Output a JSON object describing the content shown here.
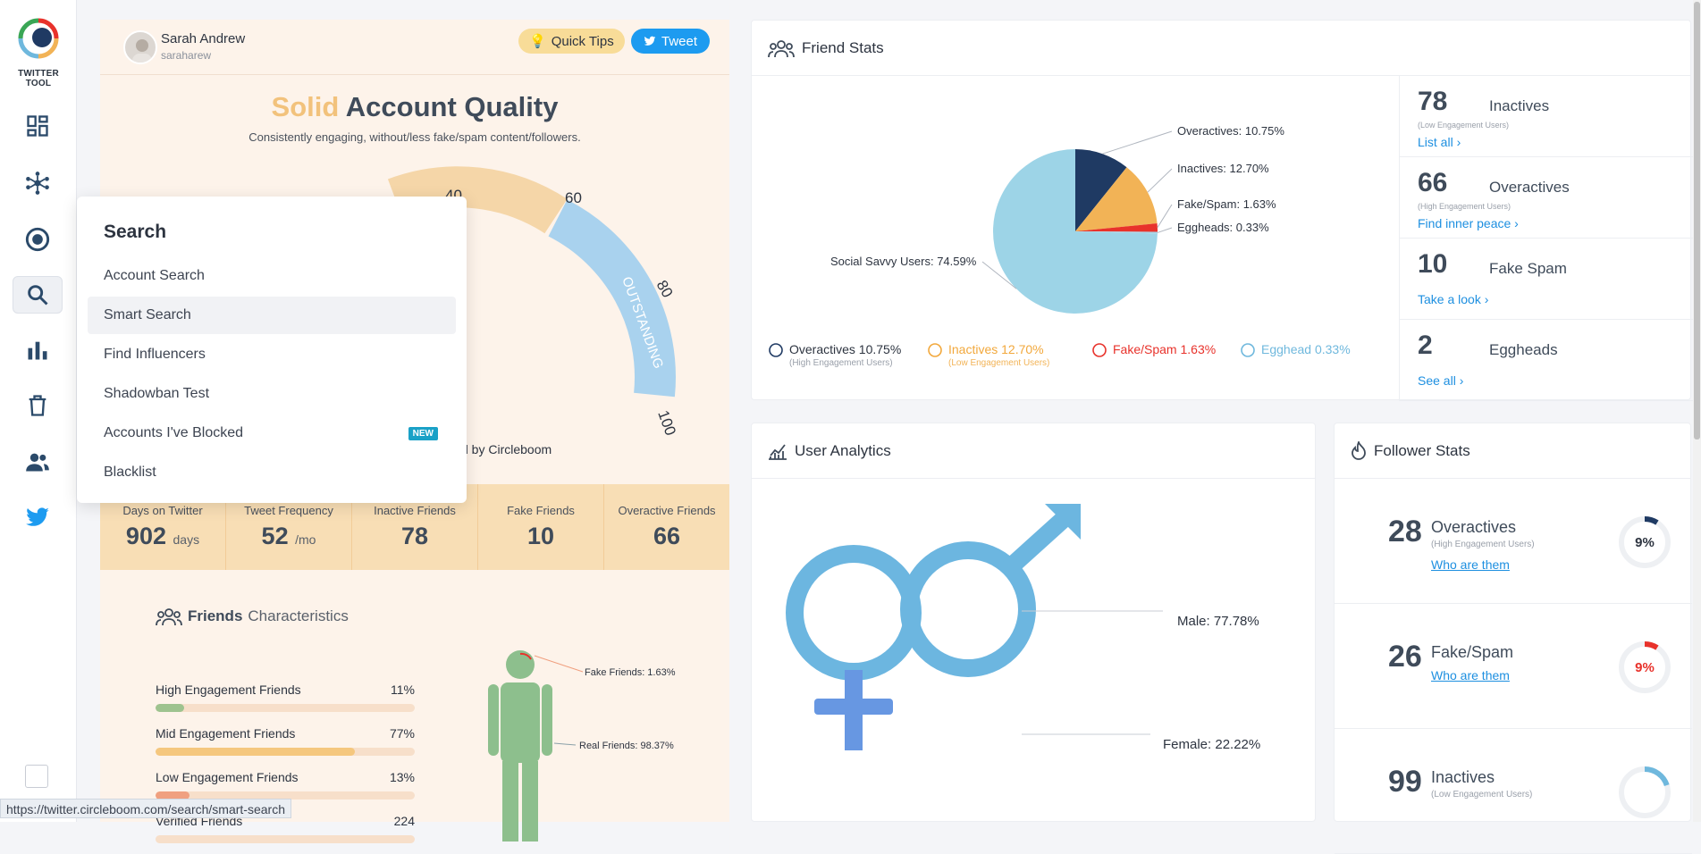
{
  "app": {
    "name": "TWITTER TOOL",
    "status_url": "https://twitter.circleboom.com/search/smart-search"
  },
  "sidebar": {
    "icons": [
      "dashboard-icon",
      "circle-network-icon",
      "target-icon",
      "search-icon",
      "bar-chart-icon",
      "trash-icon",
      "users-icon",
      "twitter-bird-icon"
    ],
    "active": "search-icon"
  },
  "profile": {
    "name": "Sarah Andrew",
    "handle": "saraharew"
  },
  "buttons": {
    "quick_tips": "Quick Tips",
    "tweet": "Tweet"
  },
  "quality": {
    "title_highlight": "Solid",
    "title_rest": " Account Quality",
    "subtitle": "Consistently engaging, without/less fake/spam content/followers.",
    "gauge_ticks": [
      "40",
      "60",
      "80",
      "100"
    ],
    "gauge_band": "OUTSTANDING",
    "powered": "d by Circleboom"
  },
  "search_menu": {
    "title": "Search",
    "items": [
      "Account Search",
      "Smart Search",
      "Find Influencers",
      "Shadowban Test",
      "Accounts I've Blocked",
      "Blacklist"
    ],
    "selected": "Smart Search",
    "new_badge": "NEW"
  },
  "stats": [
    {
      "label": "Days on Twitter",
      "value": "902",
      "unit": "days"
    },
    {
      "label": "Tweet Frequency",
      "value": "52",
      "unit": "/mo"
    },
    {
      "label": "Inactive Friends",
      "value": "78",
      "unit": ""
    },
    {
      "label": "Fake Friends",
      "value": "10",
      "unit": ""
    },
    {
      "label": "Overactive Friends",
      "value": "66",
      "unit": ""
    }
  ],
  "friends_characteristics": {
    "title_bold": "Friends",
    "title_light": "Characteristics",
    "bars": [
      {
        "label": "High Engagement Friends",
        "pct": "11%",
        "frac": 0.11,
        "color": "#9ec38f"
      },
      {
        "label": "Mid Engagement Friends",
        "pct": "77%",
        "frac": 0.77,
        "color": "#f5c77e"
      },
      {
        "label": "Low Engagement Friends",
        "pct": "13%",
        "frac": 0.13,
        "color": "#f0a080"
      },
      {
        "label": "Verified Friends",
        "pct": "224",
        "frac": 0.0,
        "color": "#f7dfca"
      }
    ],
    "person_labels": {
      "fake": "Fake Friends: 1.63%",
      "real": "Real Friends: 98.37%"
    }
  },
  "friend_stats": {
    "title": "Friend Stats",
    "chart_data": {
      "type": "pie",
      "slices": [
        {
          "label": "Overactives: 10.75%",
          "value": 10.75,
          "color": "#1f3a63"
        },
        {
          "label": "Inactives: 12.70%",
          "value": 12.7,
          "color": "#f2b356"
        },
        {
          "label": "Fake/Spam: 1.63%",
          "value": 1.63,
          "color": "#e8322b"
        },
        {
          "label": "Eggheads: 0.33%",
          "value": 0.33,
          "color": "#a8d3e6"
        },
        {
          "label": "Social Savvy Users: 74.59%",
          "value": 74.59,
          "color": "#9dd4e7"
        }
      ]
    },
    "legend": [
      {
        "text": "Overactives 10.75%",
        "sub": "(High Engagement Users)",
        "color": "#1f3a63"
      },
      {
        "text": "Inactives 12.70%",
        "sub": "(Low Engagement Users)",
        "color": "#f2a83c"
      },
      {
        "text": "Fake/Spam 1.63%",
        "sub": "",
        "color": "#e8322b"
      },
      {
        "text": "Egghead 0.33%",
        "sub": "",
        "color": "#6fb8dd"
      }
    ],
    "side": [
      {
        "num": "78",
        "name": "Inactives",
        "sub": "(Low Engagement Users)",
        "link": "List all ›"
      },
      {
        "num": "66",
        "name": "Overactives",
        "sub": "(High Engagement Users)",
        "link": "Find inner peace ›"
      },
      {
        "num": "10",
        "name": "Fake Spam",
        "sub": "",
        "link": "Take a look ›"
      },
      {
        "num": "2",
        "name": "Eggheads",
        "sub": "",
        "link": "See all ›"
      }
    ]
  },
  "user_analytics": {
    "title": "User Analytics",
    "male": "Male: 77.78%",
    "female": "Female: 22.22%",
    "male_frac": 0.7778,
    "female_frac": 0.2222
  },
  "follower_stats": {
    "title": "Follower Stats",
    "items": [
      {
        "num": "28",
        "name": "Overactives",
        "sub": "(High Engagement Users)",
        "link": "Who are them",
        "pct": "9%",
        "frac": 0.09,
        "color": "#1f3a63"
      },
      {
        "num": "26",
        "name": "Fake/Spam",
        "sub": "",
        "link": "Who are them",
        "pct": "9%",
        "frac": 0.09,
        "color": "#e8322b"
      },
      {
        "num": "99",
        "name": "Inactives",
        "sub": "(Low Engagement Users)",
        "link": "",
        "pct": "",
        "frac": 0.2,
        "color": "#6fb8dd"
      }
    ]
  }
}
